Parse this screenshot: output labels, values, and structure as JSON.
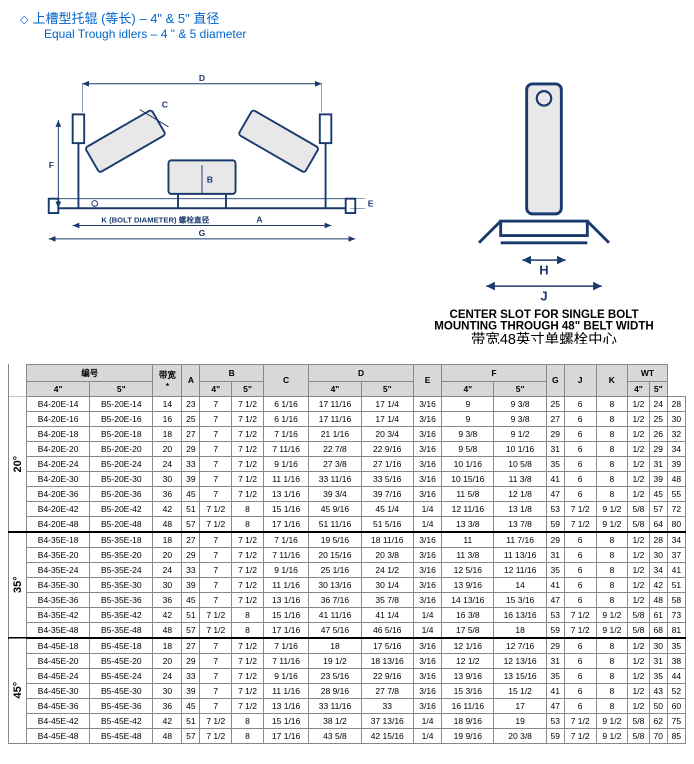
{
  "header": {
    "title_cn": "上槽型托辊 (等长) – 4\" & 5\" 直径",
    "title_en": "Equal Trough idlers – 4 \" & 5 diameter",
    "bullet": "◇"
  },
  "diagram": {
    "labels": {
      "A": "A",
      "B": "B",
      "C": "C",
      "D": "D",
      "E": "E",
      "F": "F",
      "G": "G",
      "H": "H",
      "J": "J"
    },
    "bolt_text": "K (BOLT DIAMETER) 螺栓直径",
    "slot_text_en1": "CENTER SLOT FOR SINGLE BOLT",
    "slot_text_en2": "MOUNTING THROUGH 48\" BELT WIDTH",
    "slot_text_cn": "带宽48英寸单螺栓中心"
  },
  "table": {
    "headers": {
      "part_no": "编号",
      "belt_width": "带宽",
      "asterisk": "*",
      "A": "A",
      "B": "B",
      "C": "C",
      "D": "D",
      "E": "E",
      "F": "F",
      "G": "G",
      "J": "J",
      "K": "K",
      "WT": "WT",
      "four": "4\"",
      "five": "5\""
    },
    "angles": [
      "20°",
      "35°",
      "45°"
    ],
    "rows20": [
      {
        "p4": "B4-20E-14",
        "p5": "B5-20E-14",
        "bw": "14",
        "a": "23",
        "b4": "7",
        "b5": "7 1/2",
        "c": "6 1/16",
        "d4": "17 11/16",
        "d5": "17 1/4",
        "e": "3/16",
        "f4": "9",
        "f5": "9 3/8",
        "g": "25",
        "j": "6",
        "k": "8",
        "kk": "1/2",
        "wt4": "24",
        "wt5": "28"
      },
      {
        "p4": "B4-20E-16",
        "p5": "B5-20E-16",
        "bw": "16",
        "a": "25",
        "b4": "7",
        "b5": "7 1/2",
        "c": "6 1/16",
        "d4": "17 11/16",
        "d5": "17 1/4",
        "e": "3/16",
        "f4": "9",
        "f5": "9 3/8",
        "g": "27",
        "j": "6",
        "k": "8",
        "kk": "1/2",
        "wt4": "25",
        "wt5": "30"
      },
      {
        "p4": "B4-20E-18",
        "p5": "B5-20E-18",
        "bw": "18",
        "a": "27",
        "b4": "7",
        "b5": "7 1/2",
        "c": "7 1/16",
        "d4": "21 1/16",
        "d5": "20 3/4",
        "e": "3/16",
        "f4": "9 3/8",
        "f5": "9 1/2",
        "g": "29",
        "j": "6",
        "k": "8",
        "kk": "1/2",
        "wt4": "26",
        "wt5": "32"
      },
      {
        "p4": "B4-20E-20",
        "p5": "B5-20E-20",
        "bw": "20",
        "a": "29",
        "b4": "7",
        "b5": "7 1/2",
        "c": "7 11/16",
        "d4": "22 7/8",
        "d5": "22 9/16",
        "e": "3/16",
        "f4": "9 5/8",
        "f5": "10 1/16",
        "g": "31",
        "j": "6",
        "k": "8",
        "kk": "1/2",
        "wt4": "29",
        "wt5": "34"
      },
      {
        "p4": "B4-20E-24",
        "p5": "B5-20E-24",
        "bw": "24",
        "a": "33",
        "b4": "7",
        "b5": "7 1/2",
        "c": "9 1/16",
        "d4": "27 3/8",
        "d5": "27 1/16",
        "e": "3/16",
        "f4": "10 1/16",
        "f5": "10 5/8",
        "g": "35",
        "j": "6",
        "k": "8",
        "kk": "1/2",
        "wt4": "31",
        "wt5": "39"
      },
      {
        "p4": "B4-20E-30",
        "p5": "B5-20E-30",
        "bw": "30",
        "a": "39",
        "b4": "7",
        "b5": "7 1/2",
        "c": "11 1/16",
        "d4": "33 11/16",
        "d5": "33 5/16",
        "e": "3/16",
        "f4": "10 15/16",
        "f5": "11 3/8",
        "g": "41",
        "j": "6",
        "k": "8",
        "kk": "1/2",
        "wt4": "39",
        "wt5": "48"
      },
      {
        "p4": "B4-20E-36",
        "p5": "B5-20E-36",
        "bw": "36",
        "a": "45",
        "b4": "7",
        "b5": "7 1/2",
        "c": "13 1/16",
        "d4": "39 3/4",
        "d5": "39 7/16",
        "e": "3/16",
        "f4": "11 5/8",
        "f5": "12 1/8",
        "g": "47",
        "j": "6",
        "k": "8",
        "kk": "1/2",
        "wt4": "45",
        "wt5": "55"
      },
      {
        "p4": "B4-20E-42",
        "p5": "B5-20E-42",
        "bw": "42",
        "a": "51",
        "b4": "7 1/2",
        "b5": "8",
        "c": "15 1/16",
        "d4": "45 9/16",
        "d5": "45 1/4",
        "e": "1/4",
        "f4": "12 11/16",
        "f5": "13 1/8",
        "g": "53",
        "j": "7 1/2",
        "k": "9 1/2",
        "kk": "5/8",
        "wt4": "57",
        "wt5": "72"
      },
      {
        "p4": "B4-20E-48",
        "p5": "B5-20E-48",
        "bw": "48",
        "a": "57",
        "b4": "7 1/2",
        "b5": "8",
        "c": "17 1/16",
        "d4": "51 11/16",
        "d5": "51 5/16",
        "e": "1/4",
        "f4": "13 3/8",
        "f5": "13 7/8",
        "g": "59",
        "j": "7 1/2",
        "k": "9 1/2",
        "kk": "5/8",
        "wt4": "64",
        "wt5": "80"
      }
    ],
    "rows35": [
      {
        "p4": "B4-35E-18",
        "p5": "B5-35E-18",
        "bw": "18",
        "a": "27",
        "b4": "7",
        "b5": "7 1/2",
        "c": "7 1/16",
        "d4": "19 5/16",
        "d5": "18 11/16",
        "e": "3/16",
        "f4": "11",
        "f5": "11 7/16",
        "g": "29",
        "j": "6",
        "k": "8",
        "kk": "1/2",
        "wt4": "28",
        "wt5": "34"
      },
      {
        "p4": "B4-35E-20",
        "p5": "B5-35E-20",
        "bw": "20",
        "a": "29",
        "b4": "7",
        "b5": "7 1/2",
        "c": "7 11/16",
        "d4": "20 15/16",
        "d5": "20 3/8",
        "e": "3/16",
        "f4": "11 3/8",
        "f5": "11 13/16",
        "g": "31",
        "j": "6",
        "k": "8",
        "kk": "1/2",
        "wt4": "30",
        "wt5": "37"
      },
      {
        "p4": "B4-35E-24",
        "p5": "B5-35E-24",
        "bw": "24",
        "a": "33",
        "b4": "7",
        "b5": "7 1/2",
        "c": "9 1/16",
        "d4": "25 1/16",
        "d5": "24 1/2",
        "e": "3/16",
        "f4": "12 5/16",
        "f5": "12 11/16",
        "g": "35",
        "j": "6",
        "k": "8",
        "kk": "1/2",
        "wt4": "34",
        "wt5": "41"
      },
      {
        "p4": "B4-35E-30",
        "p5": "B5-35E-30",
        "bw": "30",
        "a": "39",
        "b4": "7",
        "b5": "7 1/2",
        "c": "11 1/16",
        "d4": "30 13/16",
        "d5": "30 1/4",
        "e": "3/16",
        "f4": "13 9/16",
        "f5": "14",
        "g": "41",
        "j": "6",
        "k": "8",
        "kk": "1/2",
        "wt4": "42",
        "wt5": "51"
      },
      {
        "p4": "B4-35E-36",
        "p5": "B5-35E-36",
        "bw": "36",
        "a": "45",
        "b4": "7",
        "b5": "7 1/2",
        "c": "13 1/16",
        "d4": "36 7/16",
        "d5": "35 7/8",
        "e": "3/16",
        "f4": "14 13/16",
        "f5": "15 3/16",
        "g": "47",
        "j": "6",
        "k": "8",
        "kk": "1/2",
        "wt4": "48",
        "wt5": "58"
      },
      {
        "p4": "B4-35E-42",
        "p5": "B5-35E-42",
        "bw": "42",
        "a": "51",
        "b4": "7 1/2",
        "b5": "8",
        "c": "15 1/16",
        "d4": "41 11/16",
        "d5": "41 1/4",
        "e": "1/4",
        "f4": "16 3/8",
        "f5": "16 13/16",
        "g": "53",
        "j": "7 1/2",
        "k": "9 1/2",
        "kk": "5/8",
        "wt4": "61",
        "wt5": "73"
      },
      {
        "p4": "B4-35E-48",
        "p5": "B5-35E-48",
        "bw": "48",
        "a": "57",
        "b4": "7 1/2",
        "b5": "8",
        "c": "17 1/16",
        "d4": "47 5/16",
        "d5": "46 5/16",
        "e": "1/4",
        "f4": "17 5/8",
        "f5": "18",
        "g": "59",
        "j": "7 1/2",
        "k": "9 1/2",
        "kk": "5/8",
        "wt4": "68",
        "wt5": "81"
      }
    ],
    "rows45": [
      {
        "p4": "B4-45E-18",
        "p5": "B5-45E-18",
        "bw": "18",
        "a": "27",
        "b4": "7",
        "b5": "7 1/2",
        "c": "7 1/16",
        "d4": "18",
        "d5": "17 5/16",
        "e": "3/16",
        "f4": "12 1/16",
        "f5": "12 7/16",
        "g": "29",
        "j": "6",
        "k": "8",
        "kk": "1/2",
        "wt4": "30",
        "wt5": "35"
      },
      {
        "p4": "B4-45E-20",
        "p5": "B5-45E-20",
        "bw": "20",
        "a": "29",
        "b4": "7",
        "b5": "7 1/2",
        "c": "7 11/16",
        "d4": "19 1/2",
        "d5": "18 13/16",
        "e": "3/16",
        "f4": "12 1/2",
        "f5": "12 13/16",
        "g": "31",
        "j": "6",
        "k": "8",
        "kk": "1/2",
        "wt4": "31",
        "wt5": "38"
      },
      {
        "p4": "B4-45E-24",
        "p5": "B5-45E-24",
        "bw": "24",
        "a": "33",
        "b4": "7",
        "b5": "7 1/2",
        "c": "9 1/16",
        "d4": "23 5/16",
        "d5": "22 9/16",
        "e": "3/16",
        "f4": "13 9/16",
        "f5": "13 15/16",
        "g": "35",
        "j": "6",
        "k": "8",
        "kk": "1/2",
        "wt4": "35",
        "wt5": "44"
      },
      {
        "p4": "B4-45E-30",
        "p5": "B5-45E-30",
        "bw": "30",
        "a": "39",
        "b4": "7",
        "b5": "7 1/2",
        "c": "11 1/16",
        "d4": "28 9/16",
        "d5": "27 7/8",
        "e": "3/16",
        "f4": "15 3/16",
        "f5": "15 1/2",
        "g": "41",
        "j": "6",
        "k": "8",
        "kk": "1/2",
        "wt4": "43",
        "wt5": "52"
      },
      {
        "p4": "B4-45E-36",
        "p5": "B5-45E-36",
        "bw": "36",
        "a": "45",
        "b4": "7",
        "b5": "7 1/2",
        "c": "13 1/16",
        "d4": "33 11/16",
        "d5": "33",
        "e": "3/16",
        "f4": "16 11/16",
        "f5": "17",
        "g": "47",
        "j": "6",
        "k": "8",
        "kk": "1/2",
        "wt4": "50",
        "wt5": "60"
      },
      {
        "p4": "B4-45E-42",
        "p5": "B5-45E-42",
        "bw": "42",
        "a": "51",
        "b4": "7 1/2",
        "b5": "8",
        "c": "15 1/16",
        "d4": "38 1/2",
        "d5": "37 13/16",
        "e": "1/4",
        "f4": "18 9/16",
        "f5": "19",
        "g": "53",
        "j": "7 1/2",
        "k": "9 1/2",
        "kk": "5/8",
        "wt4": "62",
        "wt5": "75"
      },
      {
        "p4": "B4-45E-48",
        "p5": "B5-45E-48",
        "bw": "48",
        "a": "57",
        "b4": "7 1/2",
        "b5": "8",
        "c": "17 1/16",
        "d4": "43 5/8",
        "d5": "42 15/16",
        "e": "1/4",
        "f4": "19 9/16",
        "f5": "20 3/8",
        "g": "59",
        "j": "7 1/2",
        "k": "9 1/2",
        "kk": "5/8",
        "wt4": "70",
        "wt5": "85"
      }
    ]
  }
}
